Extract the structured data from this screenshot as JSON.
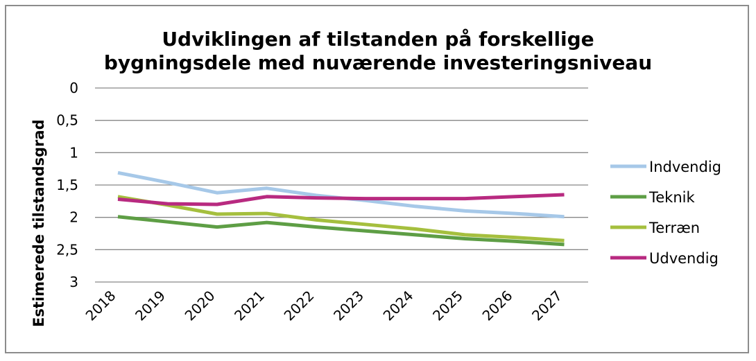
{
  "chart_data": {
    "type": "line",
    "title_line1": "Udviklingen af tilstanden på forskellige",
    "title_line2": "bygningsdele med nuværende investeringsniveau",
    "xlabel": "",
    "ylabel": "Estimerede tilstandsgrad",
    "ylim": [
      0,
      3
    ],
    "y_inverted": true,
    "y_ticks": [
      "0",
      "0,5",
      "1",
      "1,5",
      "2",
      "2,5",
      "3"
    ],
    "grid": true,
    "legend_position": "right",
    "categories": [
      "2018",
      "2019",
      "2020",
      "2021",
      "2022",
      "2023",
      "2024",
      "2025",
      "2026",
      "2027"
    ],
    "series": [
      {
        "name": "Indvendig",
        "color": "#a6c8e8",
        "values": [
          1.31,
          1.46,
          1.62,
          1.55,
          1.66,
          1.74,
          1.83,
          1.9,
          1.94,
          1.99
        ]
      },
      {
        "name": "Teknik",
        "color": "#5e9e45",
        "values": [
          1.99,
          2.07,
          2.15,
          2.08,
          2.15,
          2.21,
          2.27,
          2.33,
          2.37,
          2.42
        ]
      },
      {
        "name": "Terræn",
        "color": "#a5bf3e",
        "values": [
          1.68,
          1.81,
          1.95,
          1.94,
          2.04,
          2.11,
          2.18,
          2.27,
          2.31,
          2.36
        ]
      },
      {
        "name": "Udvendig",
        "color": "#b82a80",
        "values": [
          1.72,
          1.79,
          1.8,
          1.68,
          1.7,
          1.71,
          1.71,
          1.71,
          1.68,
          1.65
        ]
      }
    ]
  }
}
